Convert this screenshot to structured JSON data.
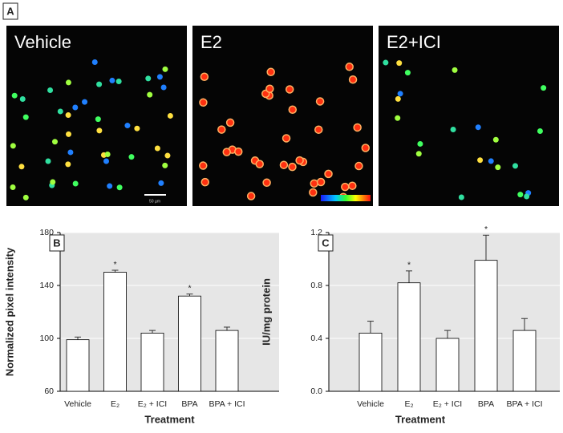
{
  "panel_a": {
    "panel_label": "A",
    "images": [
      {
        "label": "Vehicle"
      },
      {
        "label": "E2"
      },
      {
        "label": "E2+ICI"
      }
    ],
    "scale_bar": "50 µm"
  },
  "chart_data": [
    {
      "type": "bar",
      "panel_label": "B",
      "categories": [
        "Vehicle",
        "E₂",
        "E₂ + ICI",
        "BPA",
        "BPA + ICI"
      ],
      "values": [
        99,
        150,
        104,
        132,
        106
      ],
      "errors": [
        2,
        1.5,
        2,
        1.5,
        2.5
      ],
      "annotations": [
        {
          "text": "*",
          "category": "E₂"
        },
        {
          "text": "*",
          "category": "BPA"
        }
      ],
      "ylim": [
        60,
        180
      ],
      "yticks": [
        60,
        100,
        140,
        180
      ],
      "ylabel": "Normalized pixel intensity",
      "xlabel": "Treatment",
      "grid": true,
      "color": "#ffffff"
    },
    {
      "type": "bar",
      "panel_label": "C",
      "categories": [
        "Vehicle",
        "E₂",
        "E₂ + ICI",
        "BPA",
        "BPA + ICI"
      ],
      "values": [
        0.44,
        0.82,
        0.4,
        0.99,
        0.46
      ],
      "errors": [
        0.09,
        0.09,
        0.06,
        0.19,
        0.09
      ],
      "annotations": [
        {
          "text": "*",
          "category": "E₂"
        },
        {
          "text": "*",
          "category": "BPA"
        }
      ],
      "ylim": [
        0,
        1.2
      ],
      "yticks": [
        {
          "value": 0,
          "label": "0.0"
        },
        0.4,
        0.8,
        1.2
      ],
      "ylabel": "IU/mg protein",
      "xlabel": "Treatment",
      "grid": true,
      "color": "#ffffff"
    }
  ]
}
